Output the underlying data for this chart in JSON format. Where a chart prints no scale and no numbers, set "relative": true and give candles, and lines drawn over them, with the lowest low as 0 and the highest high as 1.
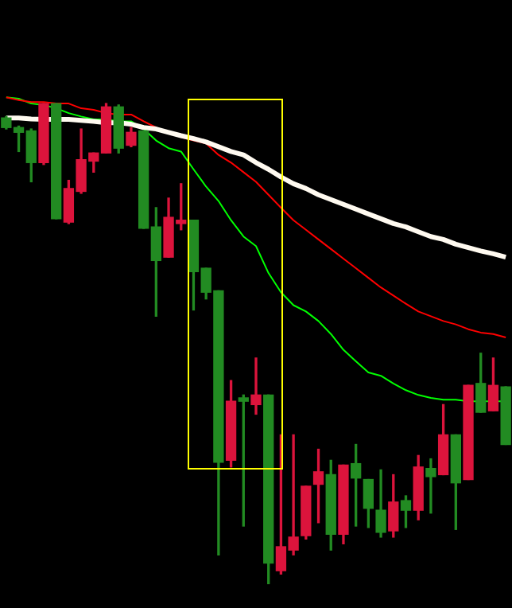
{
  "chart_data": {
    "type": "candlestick",
    "relative": true,
    "categories": [
      null,
      null,
      null,
      null,
      null,
      null,
      null,
      null,
      null,
      null,
      null,
      null,
      null,
      null,
      null,
      null,
      null,
      null,
      null,
      null,
      null,
      null,
      null,
      null,
      null,
      null,
      null,
      null,
      null,
      null,
      null,
      null,
      null,
      null,
      null,
      null,
      null,
      null,
      null,
      null,
      null
    ],
    "ohlc": [
      [
        0.97,
        0.973,
        0.947,
        0.95
      ],
      [
        0.95,
        0.953,
        0.9,
        0.94
      ],
      [
        0.943,
        0.947,
        0.837,
        0.877
      ],
      [
        0.877,
        1,
        0.873,
        1
      ],
      [
        1,
        1,
        0.76,
        0.76
      ],
      [
        0.753,
        0.84,
        0.75,
        0.823
      ],
      [
        0.817,
        0.947,
        0.813,
        0.883
      ],
      [
        0.88,
        0.897,
        0.857,
        0.897
      ],
      [
        0.897,
        1,
        0.897,
        0.993
      ],
      [
        0.993,
        0.997,
        0.897,
        0.907
      ],
      [
        0.913,
        0.95,
        0.91,
        0.94
      ],
      [
        0.943,
        0.943,
        0.74,
        0.74
      ],
      [
        0.743,
        0.783,
        0.557,
        0.673
      ],
      [
        0.68,
        0.803,
        0.68,
        0.763
      ],
      [
        0.75,
        0.833,
        0.737,
        0.757
      ],
      [
        0.757,
        0.757,
        0.57,
        0.65
      ],
      [
        0.657,
        0.657,
        0.593,
        0.607
      ],
      [
        0.61,
        0.61,
        0.06,
        0.253
      ],
      [
        0.257,
        0.423,
        0.243,
        0.38
      ],
      [
        0.387,
        0.393,
        0.12,
        0.38
      ],
      [
        0.373,
        0.47,
        0.353,
        0.393
      ],
      [
        0.393,
        0.393,
        0,
        0.043
      ],
      [
        0.027,
        0.31,
        0.02,
        0.077
      ],
      [
        0.07,
        0.31,
        0.06,
        0.097
      ],
      [
        0.1,
        0.203,
        0.093,
        0.203
      ],
      [
        0.207,
        0.28,
        0.127,
        0.233
      ],
      [
        0.227,
        0.257,
        0.07,
        0.103
      ],
      [
        0.103,
        0.247,
        0.083,
        0.247
      ],
      [
        0.25,
        0.29,
        0.12,
        0.22
      ],
      [
        0.217,
        0.217,
        0.117,
        0.157
      ],
      [
        0.153,
        0.237,
        0.097,
        0.107
      ],
      [
        0.11,
        0.227,
        0.097,
        0.17
      ],
      [
        0.173,
        0.183,
        0.117,
        0.153
      ],
      [
        0.153,
        0.267,
        0.133,
        0.243
      ],
      [
        0.24,
        0.26,
        0.147,
        0.223
      ],
      [
        0.227,
        0.373,
        0.227,
        0.31
      ],
      [
        0.31,
        0.31,
        0.113,
        0.21
      ],
      [
        0.217,
        0.413,
        0.217,
        0.413
      ],
      [
        0.417,
        0.48,
        0.357,
        0.357
      ],
      [
        0.36,
        0.47,
        0.36,
        0.413
      ],
      [
        0.41,
        0.41,
        0.29,
        0.29
      ]
    ],
    "colors": [
      "#228b22",
      "#228b22",
      "#228b22",
      "#dc143c",
      "#228b22",
      "#dc143c",
      "#dc143c",
      "#dc143c",
      "#dc143c",
      "#228b22",
      "#dc143c",
      "#228b22",
      "#228b22",
      "#dc143c",
      "#dc143c",
      "#228b22",
      "#228b22",
      "#228b22",
      "#dc143c",
      "#228b22",
      "#dc143c",
      "#228b22",
      "#dc143c",
      "#dc143c",
      "#dc143c",
      "#dc143c",
      "#228b22",
      "#dc143c",
      "#228b22",
      "#228b22",
      "#228b22",
      "#dc143c",
      "#228b22",
      "#dc143c",
      "#228b22",
      "#dc143c",
      "#228b22",
      "#dc143c",
      "#228b22",
      "#dc143c",
      "#228b22"
    ],
    "series": [
      {
        "type": "line",
        "color": "#fffaf0",
        "values": [
          0.97,
          0.97,
          0.968,
          0.967,
          0.967,
          0.967,
          0.965,
          0.963,
          0.96,
          0.96,
          0.957,
          0.95,
          0.947,
          0.94,
          0.933,
          0.927,
          0.92,
          0.91,
          0.9,
          0.893,
          0.877,
          0.863,
          0.847,
          0.833,
          0.823,
          0.81,
          0.8,
          0.79,
          0.78,
          0.77,
          0.76,
          0.75,
          0.743,
          0.733,
          0.723,
          0.717,
          0.707,
          0.7,
          0.693,
          0.687,
          0.68
        ]
      },
      {
        "type": "line",
        "color": "#ff0000",
        "values": [
          1.013,
          1.007,
          1.003,
          1.003,
          1,
          1,
          0.99,
          0.987,
          0.98,
          0.977,
          0.977,
          0.963,
          0.95,
          0.94,
          0.93,
          0.923,
          0.917,
          0.893,
          0.877,
          0.857,
          0.837,
          0.81,
          0.783,
          0.757,
          0.737,
          0.717,
          0.697,
          0.677,
          0.657,
          0.637,
          0.617,
          0.6,
          0.583,
          0.567,
          0.557,
          0.547,
          0.54,
          0.53,
          0.523,
          0.52,
          0.513
        ]
      },
      {
        "type": "line",
        "color": "#00ff00",
        "values": [
          1.013,
          1.01,
          1,
          0.997,
          0.99,
          0.98,
          0.973,
          0.967,
          0.967,
          0.963,
          0.963,
          0.947,
          0.923,
          0.907,
          0.9,
          0.863,
          0.827,
          0.797,
          0.757,
          0.723,
          0.703,
          0.647,
          0.607,
          0.58,
          0.567,
          0.547,
          0.52,
          0.487,
          0.463,
          0.44,
          0.433,
          0.417,
          0.403,
          0.393,
          0.387,
          0.383,
          0.383,
          0.38,
          0.38,
          0.38,
          0.38
        ]
      }
    ]
  }
}
